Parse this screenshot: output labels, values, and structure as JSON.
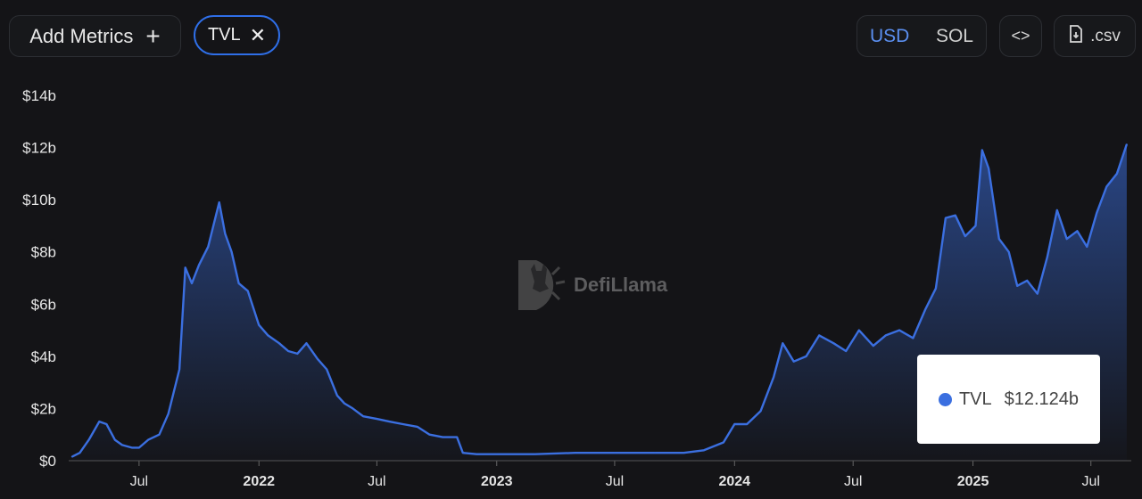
{
  "toolbar": {
    "add_metrics_label": "Add Metrics",
    "metric_chip_label": "TVL",
    "currency_options": [
      "USD",
      "SOL"
    ],
    "currency_selected": "USD",
    "csv_label": ".csv"
  },
  "watermark": {
    "text": "DefiLlama"
  },
  "tooltip": {
    "series": "TVL",
    "value": "$12.124b"
  },
  "colors": {
    "line": "#3b6fe0",
    "background": "#141417",
    "accent": "#2f6fe8"
  },
  "chart_data": {
    "type": "area",
    "title": "",
    "xlabel": "",
    "ylabel": "",
    "ylim": [
      0,
      14
    ],
    "unit": "billions USD",
    "y_ticks": [
      "$0",
      "$2b",
      "$4b",
      "$6b",
      "$8b",
      "$10b",
      "$12b",
      "$14b"
    ],
    "x_ticks": [
      {
        "label": "Jul",
        "date": "2021-07",
        "year": false
      },
      {
        "label": "2022",
        "date": "2022-01",
        "year": true
      },
      {
        "label": "Jul",
        "date": "2022-07",
        "year": false
      },
      {
        "label": "2023",
        "date": "2023-01",
        "year": true
      },
      {
        "label": "Jul",
        "date": "2023-07",
        "year": false
      },
      {
        "label": "2024",
        "date": "2024-01",
        "year": true
      },
      {
        "label": "Jul",
        "date": "2024-07",
        "year": false
      },
      {
        "label": "2025",
        "date": "2025-01",
        "year": true
      },
      {
        "label": "Jul",
        "date": "2025-07",
        "year": false
      }
    ],
    "grid": false,
    "legend": "none",
    "series": [
      {
        "name": "TVL",
        "x": [
          "2021-03-20",
          "2021-04-01",
          "2021-04-15",
          "2021-05-01",
          "2021-05-12",
          "2021-05-25",
          "2021-06-05",
          "2021-06-20",
          "2021-07-01",
          "2021-07-15",
          "2021-08-01",
          "2021-08-15",
          "2021-09-01",
          "2021-09-10",
          "2021-09-20",
          "2021-10-01",
          "2021-10-15",
          "2021-11-01",
          "2021-11-10",
          "2021-11-20",
          "2021-12-01",
          "2021-12-15",
          "2022-01-01",
          "2022-01-15",
          "2022-02-01",
          "2022-02-15",
          "2022-03-01",
          "2022-03-15",
          "2022-04-01",
          "2022-04-15",
          "2022-05-01",
          "2022-05-12",
          "2022-05-25",
          "2022-06-10",
          "2022-07-01",
          "2022-07-20",
          "2022-08-10",
          "2022-09-01",
          "2022-09-20",
          "2022-10-10",
          "2022-11-01",
          "2022-11-10",
          "2022-12-01",
          "2023-01-01",
          "2023-03-01",
          "2023-05-01",
          "2023-07-01",
          "2023-09-01",
          "2023-10-15",
          "2023-11-15",
          "2023-12-15",
          "2024-01-01",
          "2024-01-20",
          "2024-02-10",
          "2024-03-01",
          "2024-03-15",
          "2024-04-01",
          "2024-04-20",
          "2024-05-10",
          "2024-06-01",
          "2024-06-20",
          "2024-07-10",
          "2024-08-01",
          "2024-08-20",
          "2024-09-10",
          "2024-10-01",
          "2024-10-20",
          "2024-11-05",
          "2024-11-20",
          "2024-12-05",
          "2024-12-20",
          "2025-01-05",
          "2025-01-15",
          "2025-01-25",
          "2025-02-10",
          "2025-02-25",
          "2025-03-10",
          "2025-03-25",
          "2025-04-10",
          "2025-04-25",
          "2025-05-10",
          "2025-05-25",
          "2025-06-10",
          "2025-06-25",
          "2025-07-10",
          "2025-07-25",
          "2025-08-10",
          "2025-08-25"
        ],
        "values": [
          0.15,
          0.3,
          0.8,
          1.5,
          1.4,
          0.8,
          0.6,
          0.5,
          0.5,
          0.8,
          1.0,
          1.8,
          3.5,
          7.4,
          6.8,
          7.5,
          8.2,
          9.9,
          8.7,
          8.0,
          6.8,
          6.5,
          5.2,
          4.8,
          4.5,
          4.2,
          4.1,
          4.5,
          3.9,
          3.5,
          2.5,
          2.2,
          2.0,
          1.7,
          1.6,
          1.5,
          1.4,
          1.3,
          1.0,
          0.9,
          0.9,
          0.3,
          0.25,
          0.25,
          0.25,
          0.3,
          0.3,
          0.3,
          0.3,
          0.4,
          0.7,
          1.4,
          1.4,
          1.9,
          3.2,
          4.5,
          3.8,
          4.0,
          4.8,
          4.5,
          4.2,
          5.0,
          4.4,
          4.8,
          5.0,
          4.7,
          5.8,
          6.6,
          9.3,
          9.4,
          8.6,
          9.0,
          11.9,
          11.2,
          8.5,
          8.0,
          6.7,
          6.9,
          6.4,
          7.8,
          9.6,
          8.5,
          8.8,
          8.2,
          9.5,
          10.5,
          11.0,
          12.124
        ]
      }
    ]
  }
}
